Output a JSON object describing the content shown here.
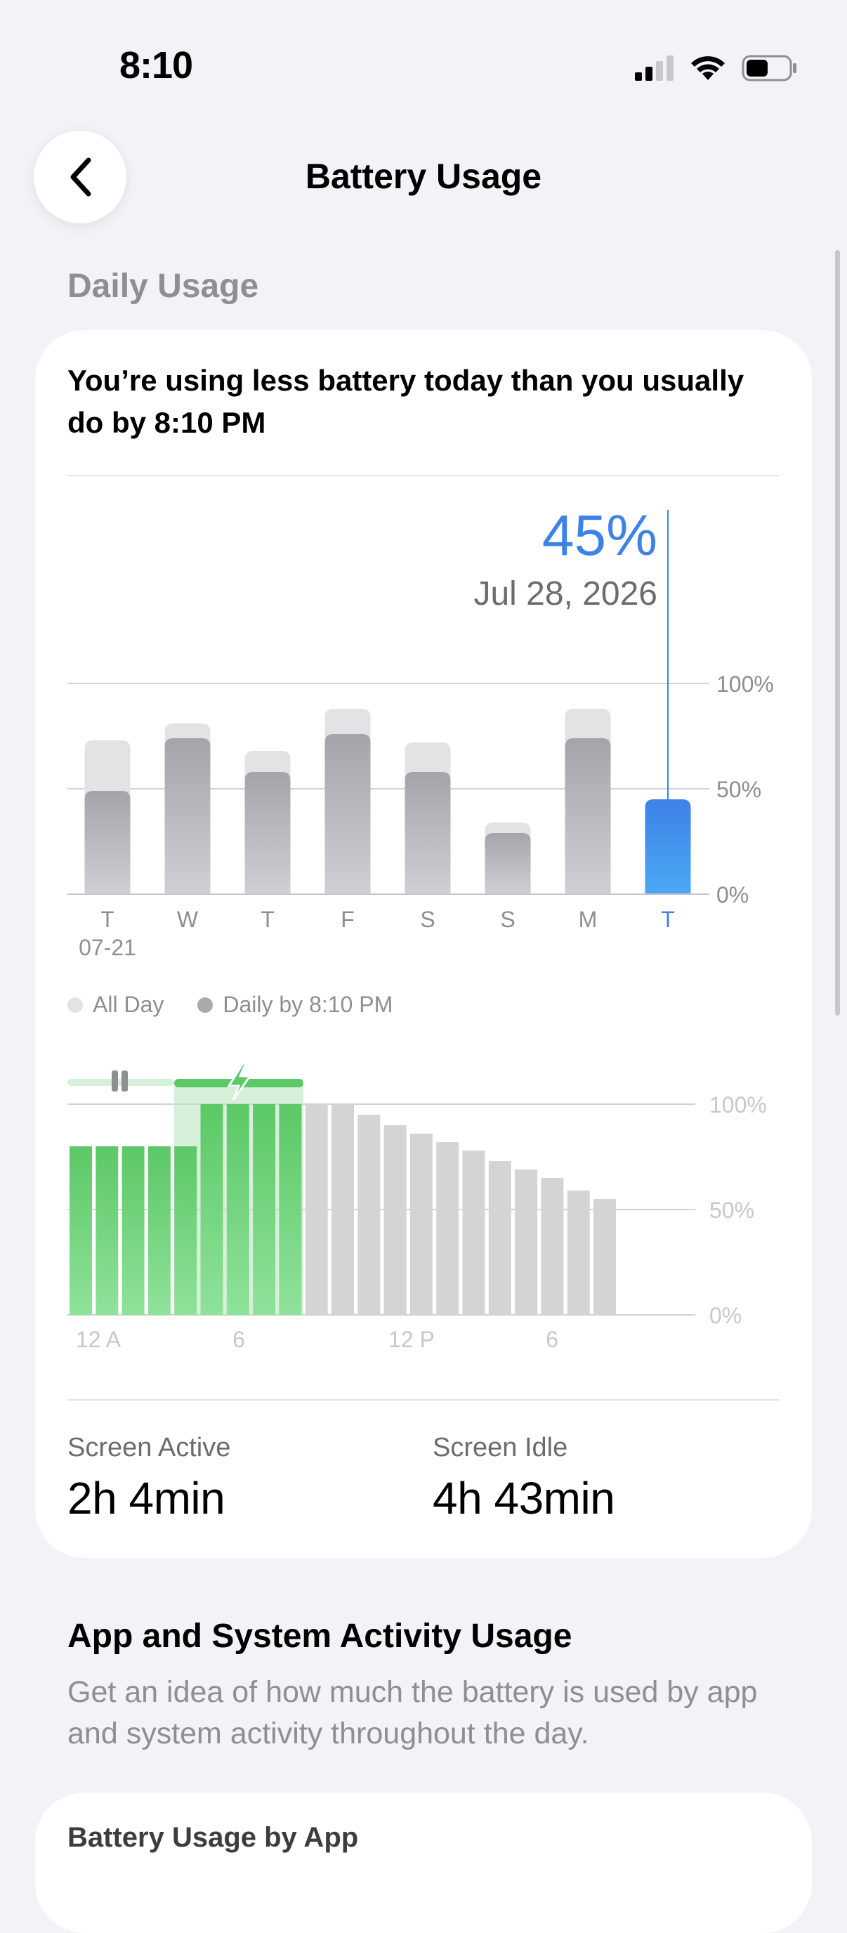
{
  "status_bar": {
    "time": "8:10"
  },
  "nav": {
    "title": "Battery Usage"
  },
  "section_label": "Daily Usage",
  "card": {
    "headline": "You’re using less battery today than you usually do by 8:10 PM",
    "selected_value": "45%",
    "selected_date": "Jul 28, 2026",
    "legend_all_day": "All Day",
    "legend_daily_by": "Daily by 8:10 PM",
    "screen_active_label": "Screen Active",
    "screen_active_value": "2h 4min",
    "screen_idle_label": "Screen Idle",
    "screen_idle_value": "4h 43min"
  },
  "section2": {
    "title": "App and System Activity Usage",
    "description": "Get an idea of how much the battery is used by app and system activity throughout the day.",
    "next_card_title": "Battery Usage by App"
  },
  "colors": {
    "accent": "#3D82E6",
    "charging_green": "#5CC866",
    "bar_gray": "#A8A8AD"
  },
  "chart_data": [
    {
      "type": "bar",
      "categories": [
        "T",
        "W",
        "T",
        "F",
        "S",
        "S",
        "M",
        "T"
      ],
      "first_category_sublabel": "07-21",
      "selected_index": 7,
      "series": [
        {
          "name": "All Day",
          "values": [
            73,
            81,
            68,
            88,
            72,
            34,
            88,
            45
          ]
        },
        {
          "name": "Daily by 8:10 PM",
          "values": [
            49,
            74,
            58,
            76,
            58,
            29,
            74,
            45
          ]
        }
      ],
      "yticks": [
        "100%",
        "50%",
        "0%"
      ],
      "ylim": [
        0,
        100
      ]
    },
    {
      "type": "bar",
      "x_tick_labels": [
        "12 A",
        "6",
        "12 P",
        "6"
      ],
      "values": [
        80,
        80,
        80,
        80,
        80,
        100,
        100,
        100,
        100,
        100,
        100,
        95,
        90,
        86,
        82,
        78,
        73,
        69,
        65,
        59,
        55
      ],
      "charging": [
        true,
        true,
        true,
        true,
        true,
        true,
        true,
        true,
        true,
        false,
        false,
        false,
        false,
        false,
        false,
        false,
        false,
        false,
        false,
        false,
        false
      ],
      "yticks": [
        "100%",
        "50%",
        "0%"
      ],
      "ylim": [
        0,
        100
      ]
    }
  ]
}
